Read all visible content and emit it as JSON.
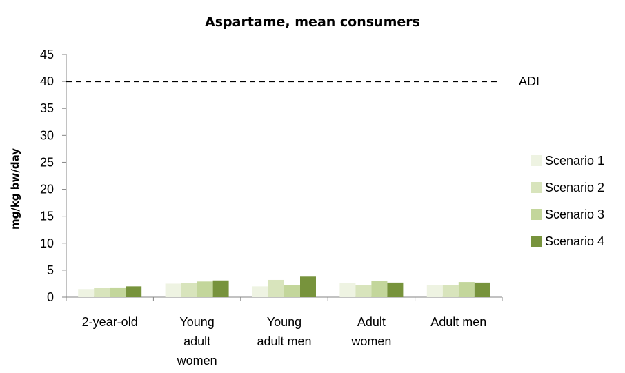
{
  "chart_data": {
    "type": "bar",
    "title": "Aspartame, mean consumers",
    "xlabel": "",
    "ylabel": "mg/kg bw/day",
    "ylim": [
      0,
      45
    ],
    "yticks": [
      0,
      5,
      10,
      15,
      20,
      25,
      30,
      35,
      40,
      45
    ],
    "categories": [
      "2-year-old",
      "Young adult women",
      "Young adult men",
      "Adult women",
      "Adult men"
    ],
    "category_lines": [
      [
        "2-year-old"
      ],
      [
        "Young",
        "adult",
        "women"
      ],
      [
        "Young",
        "adult men"
      ],
      [
        "Adult",
        "women"
      ],
      [
        "Adult men"
      ]
    ],
    "series": [
      {
        "name": "Scenario 1",
        "color": "#eef3e2",
        "values": [
          1.5,
          2.5,
          2.0,
          2.6,
          2.3
        ]
      },
      {
        "name": "Scenario 2",
        "color": "#d8e4bc",
        "values": [
          1.7,
          2.6,
          3.2,
          2.3,
          2.2
        ]
      },
      {
        "name": "Scenario 3",
        "color": "#c3d69b",
        "values": [
          1.8,
          2.9,
          2.3,
          3.0,
          2.8
        ]
      },
      {
        "name": "Scenario 4",
        "color": "#77933c",
        "values": [
          2.0,
          3.1,
          3.8,
          2.7,
          2.7
        ]
      }
    ],
    "reference_line": {
      "label": "ADI",
      "value": 40,
      "style": "dashed"
    },
    "grid": false,
    "legend_position": "right"
  }
}
